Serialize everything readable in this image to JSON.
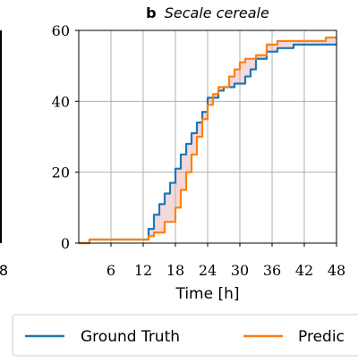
{
  "chart_data": {
    "type": "line",
    "panel_label": "b",
    "title": "Secale cereale",
    "xlabel": "Time [h]",
    "ylabel": "",
    "xlim": [
      0,
      48
    ],
    "ylim": [
      0,
      60
    ],
    "x_ticks": [
      "6",
      "12",
      "18",
      "24",
      "30",
      "36",
      "42",
      "48"
    ],
    "y_ticks": [
      "0",
      "20",
      "40",
      "60"
    ],
    "left_panel_tick": "8",
    "grid": true,
    "shaded_between_series": true,
    "legend": {
      "placement": "bottom",
      "entries": [
        "Ground Truth",
        "Predic"
      ]
    },
    "series": [
      {
        "name": "Ground Truth",
        "color": "#1f77b4",
        "points": [
          [
            0,
            0
          ],
          [
            2,
            0
          ],
          [
            2,
            1
          ],
          [
            11,
            1
          ],
          [
            13,
            1
          ],
          [
            13,
            4
          ],
          [
            14,
            4
          ],
          [
            14,
            8
          ],
          [
            15,
            8
          ],
          [
            15,
            11
          ],
          [
            16,
            11
          ],
          [
            16,
            14
          ],
          [
            17,
            14
          ],
          [
            17,
            17
          ],
          [
            18,
            17
          ],
          [
            18,
            21
          ],
          [
            19,
            21
          ],
          [
            19,
            25
          ],
          [
            20,
            25
          ],
          [
            20,
            28
          ],
          [
            21,
            28
          ],
          [
            21,
            31
          ],
          [
            22,
            31
          ],
          [
            22,
            34
          ],
          [
            23,
            34
          ],
          [
            23,
            37
          ],
          [
            24,
            37
          ],
          [
            24,
            41
          ],
          [
            26,
            41
          ],
          [
            26,
            43
          ],
          [
            27,
            43
          ],
          [
            27,
            44
          ],
          [
            29,
            44
          ],
          [
            29,
            45
          ],
          [
            31,
            45
          ],
          [
            31,
            47
          ],
          [
            32,
            47
          ],
          [
            32,
            49
          ],
          [
            33,
            49
          ],
          [
            33,
            52
          ],
          [
            35,
            52
          ],
          [
            35,
            54
          ],
          [
            37,
            54
          ],
          [
            37,
            55
          ],
          [
            40,
            55
          ],
          [
            40,
            56
          ],
          [
            48,
            56
          ]
        ]
      },
      {
        "name": "Predic",
        "color": "#ff7f0e",
        "points": [
          [
            0,
            0
          ],
          [
            2,
            0
          ],
          [
            2,
            1
          ],
          [
            12,
            1
          ],
          [
            13,
            1
          ],
          [
            13,
            2
          ],
          [
            14,
            2
          ],
          [
            14,
            3
          ],
          [
            16,
            3
          ],
          [
            16,
            6
          ],
          [
            18,
            6
          ],
          [
            18,
            10
          ],
          [
            19,
            10
          ],
          [
            19,
            15
          ],
          [
            20,
            15
          ],
          [
            20,
            20
          ],
          [
            21,
            20
          ],
          [
            21,
            25
          ],
          [
            22,
            25
          ],
          [
            22,
            30
          ],
          [
            23,
            30
          ],
          [
            23,
            35
          ],
          [
            24,
            35
          ],
          [
            24,
            39
          ],
          [
            25,
            39
          ],
          [
            25,
            42
          ],
          [
            26,
            42
          ],
          [
            26,
            44
          ],
          [
            28,
            44
          ],
          [
            28,
            47
          ],
          [
            29,
            47
          ],
          [
            29,
            49
          ],
          [
            30,
            49
          ],
          [
            30,
            51
          ],
          [
            31,
            51
          ],
          [
            31,
            52
          ],
          [
            33,
            52
          ],
          [
            33,
            53
          ],
          [
            35,
            53
          ],
          [
            35,
            56
          ],
          [
            37,
            56
          ],
          [
            37,
            57
          ],
          [
            46,
            57
          ],
          [
            46,
            58
          ],
          [
            48,
            58
          ]
        ]
      }
    ]
  }
}
